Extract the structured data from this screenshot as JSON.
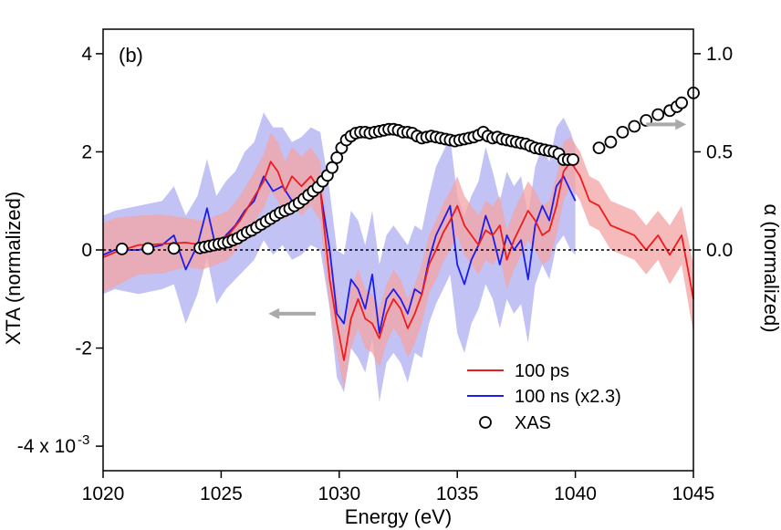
{
  "chart_data": {
    "type": "line",
    "panel_label": "(b)",
    "xlabel": "Energy (eV)",
    "ylabel_left": "XTA (normalized)",
    "ylabel_right": "α (normalized)",
    "xlim": [
      1020,
      1045
    ],
    "ylim_left": [
      -4.5,
      4.5
    ],
    "ylim_right": [
      -1.125,
      1.125
    ],
    "x_ticks": [
      "1020",
      "1025",
      "1030",
      "1035",
      "1040",
      "1045"
    ],
    "x_tick_values": [
      1020,
      1025,
      1030,
      1035,
      1040,
      1045
    ],
    "y_left_ticks": [
      "4",
      "2",
      "0",
      "-2",
      "-4 x 10"
    ],
    "y_left_tick_values": [
      4,
      2,
      0,
      -2,
      -4
    ],
    "y_left_exponent": "-3",
    "y_right_ticks": [
      "1.0",
      "0.5",
      "0.0"
    ],
    "y_right_tick_values": [
      1.0,
      0.5,
      0.0
    ],
    "grid": false,
    "zero_line": "dotted",
    "legend_position": "bottom-right",
    "colors": {
      "red": "#ee1c1c",
      "blue": "#1c1cee",
      "red_band": "#f4a3a3",
      "blue_band": "#b3b3f3",
      "arrow": "#aaaaaa"
    },
    "series": [
      {
        "name": "100 ps",
        "color": "#ee1c1c",
        "axis": "left",
        "x": [
          1019.5,
          1020.5,
          1021.5,
          1022.5,
          1023.5,
          1024.2,
          1024.8,
          1025.3,
          1025.8,
          1026.3,
          1026.8,
          1027.1,
          1027.4,
          1027.7,
          1028.0,
          1028.4,
          1028.8,
          1029.2,
          1029.6,
          1029.9,
          1030.2,
          1030.5,
          1030.8,
          1031.1,
          1031.4,
          1031.7,
          1032.0,
          1032.3,
          1032.6,
          1032.9,
          1033.2,
          1033.5,
          1033.8,
          1034.1,
          1034.4,
          1034.7,
          1035.0,
          1035.3,
          1035.6,
          1035.9,
          1036.2,
          1036.5,
          1036.8,
          1037.1,
          1037.4,
          1037.7,
          1038.0,
          1038.3,
          1038.6,
          1038.9,
          1039.2,
          1039.5,
          1039.8,
          1040.2,
          1040.6,
          1041.0,
          1041.5,
          1042.0,
          1042.5,
          1043.0,
          1043.5,
          1044.0,
          1044.5,
          1045.0
        ],
        "y": [
          -0.15,
          -0.05,
          0.1,
          0.12,
          0.15,
          0.1,
          0.2,
          0.3,
          0.6,
          1.0,
          1.4,
          1.8,
          1.6,
          1.2,
          1.5,
          1.3,
          1.5,
          1.2,
          -0.6,
          -1.5,
          -2.25,
          -1.4,
          -1.0,
          -1.4,
          -1.5,
          -1.8,
          -1.3,
          -1.0,
          -1.2,
          -1.6,
          -1.3,
          -0.9,
          -0.3,
          0.0,
          0.35,
          0.6,
          0.9,
          0.5,
          0.3,
          0.1,
          0.4,
          0.3,
          0.5,
          -0.2,
          0.2,
          0.5,
          0.8,
          0.6,
          0.3,
          0.4,
          0.9,
          1.6,
          1.8,
          1.5,
          1.0,
          0.9,
          0.5,
          0.4,
          0.3,
          0.0,
          0.3,
          -0.1,
          0.3,
          -1.0
        ],
        "band": [
          0.7,
          0.7,
          0.6,
          0.6,
          0.5,
          0.5,
          0.5,
          0.5,
          0.5,
          0.5,
          0.55,
          0.6,
          0.6,
          0.6,
          0.6,
          0.6,
          0.6,
          0.6,
          0.6,
          0.6,
          0.6,
          0.6,
          0.6,
          0.6,
          0.6,
          0.6,
          0.6,
          0.6,
          0.6,
          0.6,
          0.6,
          0.6,
          0.6,
          0.6,
          0.6,
          0.6,
          0.6,
          0.6,
          0.6,
          0.6,
          0.6,
          0.6,
          0.6,
          0.6,
          0.6,
          0.6,
          0.6,
          0.6,
          0.6,
          0.6,
          0.6,
          0.6,
          0.5,
          0.5,
          0.5,
          0.5,
          0.5,
          0.5,
          0.5,
          0.5,
          0.5,
          0.6,
          0.6,
          0.7
        ]
      },
      {
        "name": "100 ns (x2.3)",
        "color": "#1c1cee",
        "axis": "left",
        "x": [
          1019.5,
          1020.5,
          1021.5,
          1022.5,
          1023.0,
          1023.5,
          1024.0,
          1024.4,
          1024.8,
          1025.2,
          1025.6,
          1026.0,
          1026.4,
          1026.8,
          1027.2,
          1027.6,
          1028.0,
          1028.4,
          1028.8,
          1029.2,
          1029.6,
          1029.9,
          1030.2,
          1030.5,
          1030.8,
          1031.1,
          1031.4,
          1031.7,
          1032.0,
          1032.3,
          1032.6,
          1032.9,
          1033.2,
          1033.5,
          1033.8,
          1034.1,
          1034.4,
          1034.7,
          1035.0,
          1035.3,
          1035.6,
          1035.9,
          1036.2,
          1036.5,
          1036.8,
          1037.1,
          1037.4,
          1037.7,
          1038.0,
          1038.3,
          1038.6,
          1038.9,
          1039.2,
          1039.5,
          1039.8,
          1040.0
        ],
        "y": [
          -0.1,
          0.0,
          0.0,
          0.1,
          0.3,
          -0.4,
          0.1,
          0.85,
          0.0,
          0.3,
          0.5,
          0.8,
          1.0,
          1.5,
          1.2,
          1.3,
          1.0,
          1.1,
          1.3,
          1.2,
          0.0,
          -1.3,
          -1.5,
          -0.6,
          -0.8,
          -1.2,
          -0.5,
          -1.7,
          -1.0,
          -0.8,
          -1.0,
          -1.3,
          -0.8,
          -0.9,
          -0.2,
          0.3,
          0.6,
          0.9,
          -0.3,
          -0.7,
          -0.2,
          0.1,
          0.7,
          0.3,
          -0.3,
          0.3,
          0.0,
          0.2,
          -0.6,
          0.5,
          0.9,
          0.6,
          1.3,
          1.5,
          1.2,
          1.0
        ],
        "band": [
          0.8,
          0.8,
          0.9,
          0.9,
          1.0,
          1.1,
          1.0,
          1.0,
          1.1,
          1.1,
          1.1,
          1.2,
          1.2,
          1.3,
          1.3,
          1.2,
          1.2,
          1.2,
          1.2,
          1.2,
          1.2,
          1.3,
          1.4,
          1.4,
          1.4,
          1.3,
          1.3,
          1.4,
          1.3,
          1.3,
          1.3,
          1.4,
          1.3,
          1.3,
          1.3,
          1.4,
          1.4,
          1.4,
          1.4,
          1.4,
          1.3,
          1.3,
          1.4,
          1.3,
          1.3,
          1.3,
          1.3,
          1.3,
          1.3,
          1.2,
          1.2,
          1.2,
          1.2,
          1.2,
          1.2,
          1.1
        ]
      },
      {
        "name": "XAS",
        "color": "#000000",
        "axis": "right",
        "marker": "open-circle",
        "x": [
          1020.8,
          1021.9,
          1023.0,
          1024.1,
          1024.3,
          1024.5,
          1024.7,
          1024.9,
          1025.1,
          1025.3,
          1025.5,
          1025.7,
          1025.9,
          1026.1,
          1026.3,
          1026.5,
          1026.7,
          1026.9,
          1027.1,
          1027.3,
          1027.5,
          1027.7,
          1027.9,
          1028.1,
          1028.3,
          1028.5,
          1028.7,
          1028.9,
          1029.1,
          1029.3,
          1029.5,
          1029.7,
          1029.9,
          1030.1,
          1030.3,
          1030.5,
          1030.7,
          1030.9,
          1031.1,
          1031.3,
          1031.5,
          1031.7,
          1031.9,
          1032.1,
          1032.3,
          1032.5,
          1032.7,
          1032.9,
          1033.1,
          1033.3,
          1033.5,
          1033.7,
          1033.9,
          1034.1,
          1034.3,
          1034.5,
          1034.7,
          1034.9,
          1035.1,
          1035.3,
          1035.5,
          1035.7,
          1035.9,
          1036.1,
          1036.3,
          1036.5,
          1036.7,
          1036.9,
          1037.1,
          1037.3,
          1037.5,
          1037.7,
          1037.9,
          1038.1,
          1038.3,
          1038.5,
          1038.7,
          1038.9,
          1039.1,
          1039.3,
          1039.5,
          1039.7,
          1039.9,
          1041.0,
          1041.5,
          1042.0,
          1042.5,
          1043.0,
          1043.5,
          1044.0,
          1044.3,
          1044.5,
          1045.0
        ],
        "y": [
          0.005,
          0.007,
          0.008,
          0.01,
          0.015,
          0.02,
          0.025,
          0.03,
          0.035,
          0.04,
          0.05,
          0.06,
          0.075,
          0.09,
          0.1,
          0.115,
          0.13,
          0.145,
          0.16,
          0.175,
          0.19,
          0.2,
          0.21,
          0.225,
          0.24,
          0.26,
          0.28,
          0.3,
          0.32,
          0.35,
          0.38,
          0.42,
          0.47,
          0.52,
          0.56,
          0.58,
          0.595,
          0.6,
          0.6,
          0.595,
          0.6,
          0.605,
          0.61,
          0.615,
          0.615,
          0.61,
          0.6,
          0.6,
          0.595,
          0.58,
          0.57,
          0.575,
          0.58,
          0.575,
          0.57,
          0.565,
          0.56,
          0.555,
          0.56,
          0.565,
          0.57,
          0.575,
          0.585,
          0.6,
          0.58,
          0.57,
          0.575,
          0.565,
          0.56,
          0.555,
          0.55,
          0.545,
          0.54,
          0.53,
          0.52,
          0.515,
          0.51,
          0.505,
          0.5,
          0.49,
          0.46,
          0.46,
          0.46,
          0.52,
          0.55,
          0.6,
          0.63,
          0.66,
          0.69,
          0.71,
          0.73,
          0.75,
          0.8
        ]
      }
    ],
    "arrows": [
      {
        "direction": "left",
        "axis": "left",
        "x_from": 1029.0,
        "x_to": 1027.0,
        "y": -1.3
      },
      {
        "direction": "right",
        "axis": "right",
        "x_from": 1043.0,
        "x_to": 1044.7,
        "y": 0.64
      }
    ]
  }
}
